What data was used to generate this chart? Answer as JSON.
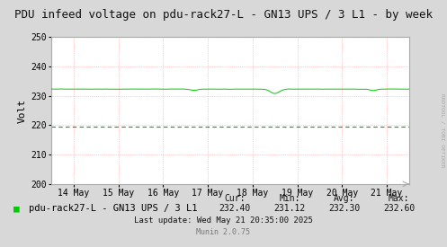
{
  "title": "PDU infeed voltage on pdu-rack27-L - GN13 UPS / 3 L1 - by week",
  "ylabel": "Volt",
  "ylim": [
    200,
    250
  ],
  "yticks": [
    200,
    210,
    220,
    230,
    240,
    250
  ],
  "line_value": 232.3,
  "line_color": "#00cc00",
  "dashed_line_value": 219.5,
  "dashed_line_color": "#00aa00",
  "dashed_top_value": 250.0,
  "dashed_top_color": "#00aa00",
  "background_color": "#d8d8d8",
  "plot_bg_color": "#ffffff",
  "grid_color_h": "#ff9999",
  "grid_color_v": "#ff9999",
  "x_labels": [
    "14 May",
    "15 May",
    "16 May",
    "17 May",
    "18 May",
    "19 May",
    "20 May",
    "21 May"
  ],
  "x_tick_positions": [
    0.5,
    1.5,
    2.5,
    3.5,
    4.5,
    5.5,
    6.5,
    7.5
  ],
  "legend_label": "pdu-rack27-L - GN13 UPS / 3 L1",
  "legend_color": "#00cc00",
  "cur_val": "232.40",
  "min_val": "231.12",
  "avg_val": "232.30",
  "max_val": "232.60",
  "last_update": "Last update: Wed May 21 20:35:00 2025",
  "munin_version": "Munin 2.0.75",
  "rotated_text": "RRDTOOL / TOBI OETIKER",
  "title_fontsize": 9,
  "axis_fontsize": 7,
  "legend_fontsize": 7.5
}
